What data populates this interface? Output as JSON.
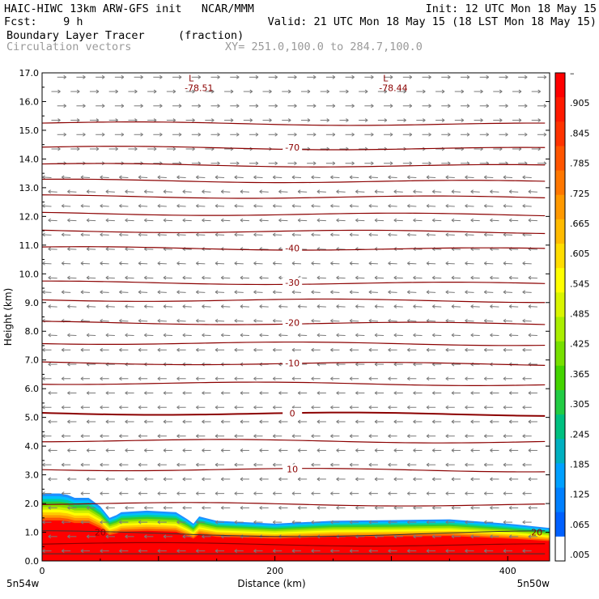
{
  "header": {
    "line1_left": "HAIC-HIWC 13km ARW-GFS init   NCAR/MMM",
    "line1_right": "Init: 12 UTC Mon 18 May 15",
    "line2_left": "Fcst:    9 h",
    "line2_right": "Valid: 21 UTC Mon 18 May 15 (18 LST Mon 18 May 15)",
    "line3_left": "Boundary Layer Tracer",
    "line3_units": "(fraction)",
    "line4_left": "Circulation vectors",
    "line4_right": "XY= 251.0,100.0 to 284.7,100.0"
  },
  "chart_data": {
    "type": "heatmap",
    "xlabel": "Distance (km)",
    "ylabel": "Height (km)",
    "xlim": [
      0,
      436
    ],
    "ylim": [
      0,
      17
    ],
    "x_ticks": [
      {
        "value": 0,
        "label": "0"
      },
      {
        "value": 200,
        "label": "200"
      },
      {
        "value": 400,
        "label": "400"
      }
    ],
    "x_end_labels": {
      "left": "5n54w",
      "right": "5n50w"
    },
    "y_ticks": [
      0.0,
      1.0,
      2.0,
      3.0,
      4.0,
      5.0,
      6.0,
      7.0,
      8.0,
      9.0,
      10.0,
      11.0,
      12.0,
      13.0,
      14.0,
      15.0,
      16.0,
      17.0
    ],
    "y_tick_labels": [
      "0.0",
      "1.0",
      "2.0",
      "3.0",
      "4.0",
      "5.0",
      "6.0",
      "7.0",
      "8.0",
      "9.0",
      "10.0",
      "11.0",
      "12.0",
      "13.0",
      "14.0",
      "15.0",
      "16.0",
      "17.0"
    ],
    "colorbar": {
      "labels": [
        "–",
        ".905",
        ".845",
        ".785",
        ".725",
        ".665",
        ".605",
        ".545",
        ".485",
        ".425",
        ".365",
        ".305",
        ".245",
        ".185",
        ".125",
        ".065",
        ".005"
      ],
      "colors": [
        "#ff0000",
        "#ff1a00",
        "#ff3300",
        "#ff5500",
        "#ff7700",
        "#ff9900",
        "#ffbb00",
        "#ffdd00",
        "#ffff00",
        "#d9f500",
        "#aaee00",
        "#77e000",
        "#44d400",
        "#22cc44",
        "#00c080",
        "#00b0c0",
        "#00a0ff",
        "#0080ff",
        "#0060ff",
        "#ffffff"
      ]
    },
    "tracer_top_km": [
      [
        0,
        2.35
      ],
      [
        15,
        2.35
      ],
      [
        22,
        2.3
      ],
      [
        28,
        2.2
      ],
      [
        40,
        2.2
      ],
      [
        50,
        1.9
      ],
      [
        58,
        1.5
      ],
      [
        64,
        1.6
      ],
      [
        68,
        1.7
      ],
      [
        90,
        1.75
      ],
      [
        115,
        1.7
      ],
      [
        125,
        1.45
      ],
      [
        130,
        1.3
      ],
      [
        135,
        1.55
      ],
      [
        150,
        1.4
      ],
      [
        200,
        1.3
      ],
      [
        250,
        1.4
      ],
      [
        300,
        1.42
      ],
      [
        350,
        1.45
      ],
      [
        400,
        1.3
      ],
      [
        436,
        1.15
      ]
    ],
    "temperature_contours": [
      {
        "label": "-70",
        "height_km": 14.4,
        "label_x": 215
      },
      {
        "label": "-40",
        "height_km": 10.9,
        "label_x": 215
      },
      {
        "label": "-30",
        "height_km": 9.7,
        "label_x": 215
      },
      {
        "label": "-20",
        "height_km": 8.3,
        "label_x": 215
      },
      {
        "label": "-10",
        "height_km": 6.9,
        "label_x": 215
      },
      {
        "label": "0",
        "height_km": 5.15,
        "label_x": 215
      },
      {
        "label": "10",
        "height_km": 3.2,
        "label_x": 215
      },
      {
        "label": "20",
        "height_km": 1.0,
        "label_x": 50
      },
      {
        "label": "20",
        "height_km": 1.0,
        "label_x": 425
      }
    ],
    "unlabeled_contour_heights_km": [
      15.25,
      13.8,
      13.25,
      12.7,
      12.1,
      11.5,
      9.1,
      7.6,
      6.2,
      4.2,
      2.0,
      0.6
    ],
    "minimum_labels": [
      {
        "label": "L",
        "value": "-78.51",
        "x": 128,
        "height_km": 16.7
      },
      {
        "label": "L",
        "value": "-78.44",
        "x": 295,
        "height_km": 16.7
      }
    ],
    "wind_vectors": [
      {
        "z_min": 13.5,
        "z_max": 17.0,
        "dx": 1,
        "dy": 0
      },
      {
        "z_min": 7.5,
        "z_max": 13.5,
        "dx": -1,
        "dy": 0.05
      },
      {
        "z_min": 0.0,
        "z_max": 7.5,
        "dx": -1,
        "dy": 0
      }
    ],
    "grid": false,
    "legend": "right"
  }
}
